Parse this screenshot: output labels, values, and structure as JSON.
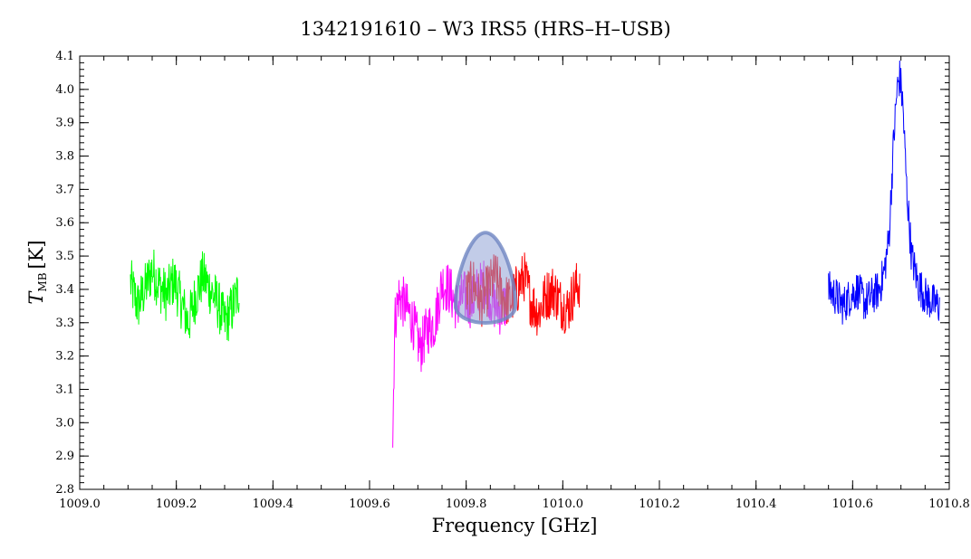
{
  "chart_data": {
    "type": "line",
    "title": "1342191610 – W3 IRS5 (HRS–H–USB)",
    "xlabel": "Frequency [GHz]",
    "ylabel_main": "T",
    "ylabel_sub": "MB",
    "ylabel_unit": "[K]",
    "xlim": [
      1009.0,
      1010.8
    ],
    "ylim": [
      2.8,
      4.1
    ],
    "x_major_ticks": [
      1009.0,
      1009.2,
      1009.4,
      1009.6,
      1009.8,
      1010.0,
      1010.2,
      1010.4,
      1010.6,
      1010.8
    ],
    "x_tick_labels": [
      "1009.0",
      "1009.2",
      "1009.4",
      "1009.6",
      "1009.8",
      "1010.0",
      "1010.2",
      "1010.4",
      "1010.6",
      "1010.8"
    ],
    "y_major_ticks": [
      2.8,
      2.9,
      3.0,
      3.1,
      3.2,
      3.3,
      3.4,
      3.5,
      3.6,
      3.7,
      3.8,
      3.9,
      4.0,
      4.1
    ],
    "y_tick_labels": [
      "2.8",
      "2.9",
      "3.0",
      "3.1",
      "3.2",
      "3.3",
      "3.4",
      "3.5",
      "3.6",
      "3.7",
      "3.8",
      "3.9",
      "4.0",
      "4.1"
    ],
    "grid": false,
    "legend": "none",
    "series": [
      {
        "color": "#00ff00",
        "x": [
          1009.105,
          1009.12,
          1009.135,
          1009.15,
          1009.165,
          1009.18,
          1009.195,
          1009.21,
          1009.225,
          1009.24,
          1009.255,
          1009.27,
          1009.285,
          1009.3,
          1009.315,
          1009.33
        ],
        "y": [
          3.42,
          3.35,
          3.4,
          3.46,
          3.41,
          3.38,
          3.43,
          3.36,
          3.3,
          3.38,
          3.44,
          3.4,
          3.36,
          3.3,
          3.34,
          3.4
        ],
        "noise": 0.08
      },
      {
        "color": "#ff00ff",
        "x": [
          1009.648,
          1009.652,
          1009.66,
          1009.675,
          1009.69,
          1009.705,
          1009.72,
          1009.735,
          1009.75,
          1009.765,
          1009.78,
          1009.795,
          1009.81,
          1009.825,
          1009.84,
          1009.855,
          1009.87,
          1009.885
        ],
        "y": [
          2.95,
          3.3,
          3.38,
          3.35,
          3.3,
          3.22,
          3.28,
          3.3,
          3.42,
          3.4,
          3.35,
          3.38,
          3.36,
          3.4,
          3.42,
          3.36,
          3.34,
          3.36
        ],
        "noise": 0.08
      },
      {
        "color": "#ff0000",
        "x": [
          1009.8,
          1009.815,
          1009.83,
          1009.845,
          1009.86,
          1009.875,
          1009.89,
          1009.905,
          1009.92,
          1009.935,
          1009.95,
          1009.965,
          1009.98,
          1009.995,
          1010.01,
          1010.025,
          1010.035
        ],
        "y": [
          3.38,
          3.42,
          3.36,
          3.4,
          3.44,
          3.38,
          3.36,
          3.4,
          3.44,
          3.36,
          3.33,
          3.38,
          3.4,
          3.36,
          3.34,
          3.4,
          3.42
        ],
        "noise": 0.08
      },
      {
        "color": "#0000ff",
        "x": [
          1010.55,
          1010.565,
          1010.58,
          1010.595,
          1010.61,
          1010.625,
          1010.64,
          1010.655,
          1010.665,
          1010.675,
          1010.685,
          1010.692,
          1010.698,
          1010.704,
          1010.712,
          1010.722,
          1010.735,
          1010.75,
          1010.765,
          1010.78
        ],
        "y": [
          3.4,
          3.38,
          3.35,
          3.38,
          3.4,
          3.36,
          3.38,
          3.4,
          3.45,
          3.55,
          3.85,
          4.0,
          4.04,
          3.95,
          3.7,
          3.5,
          3.42,
          3.38,
          3.36,
          3.35
        ],
        "noise": 0.06
      }
    ],
    "annotation_band": {
      "color": "#8fa3d6",
      "x_center": 1009.84,
      "x_halfwidth": 0.065,
      "y_bottom": 3.29,
      "y_top": 3.57
    }
  }
}
